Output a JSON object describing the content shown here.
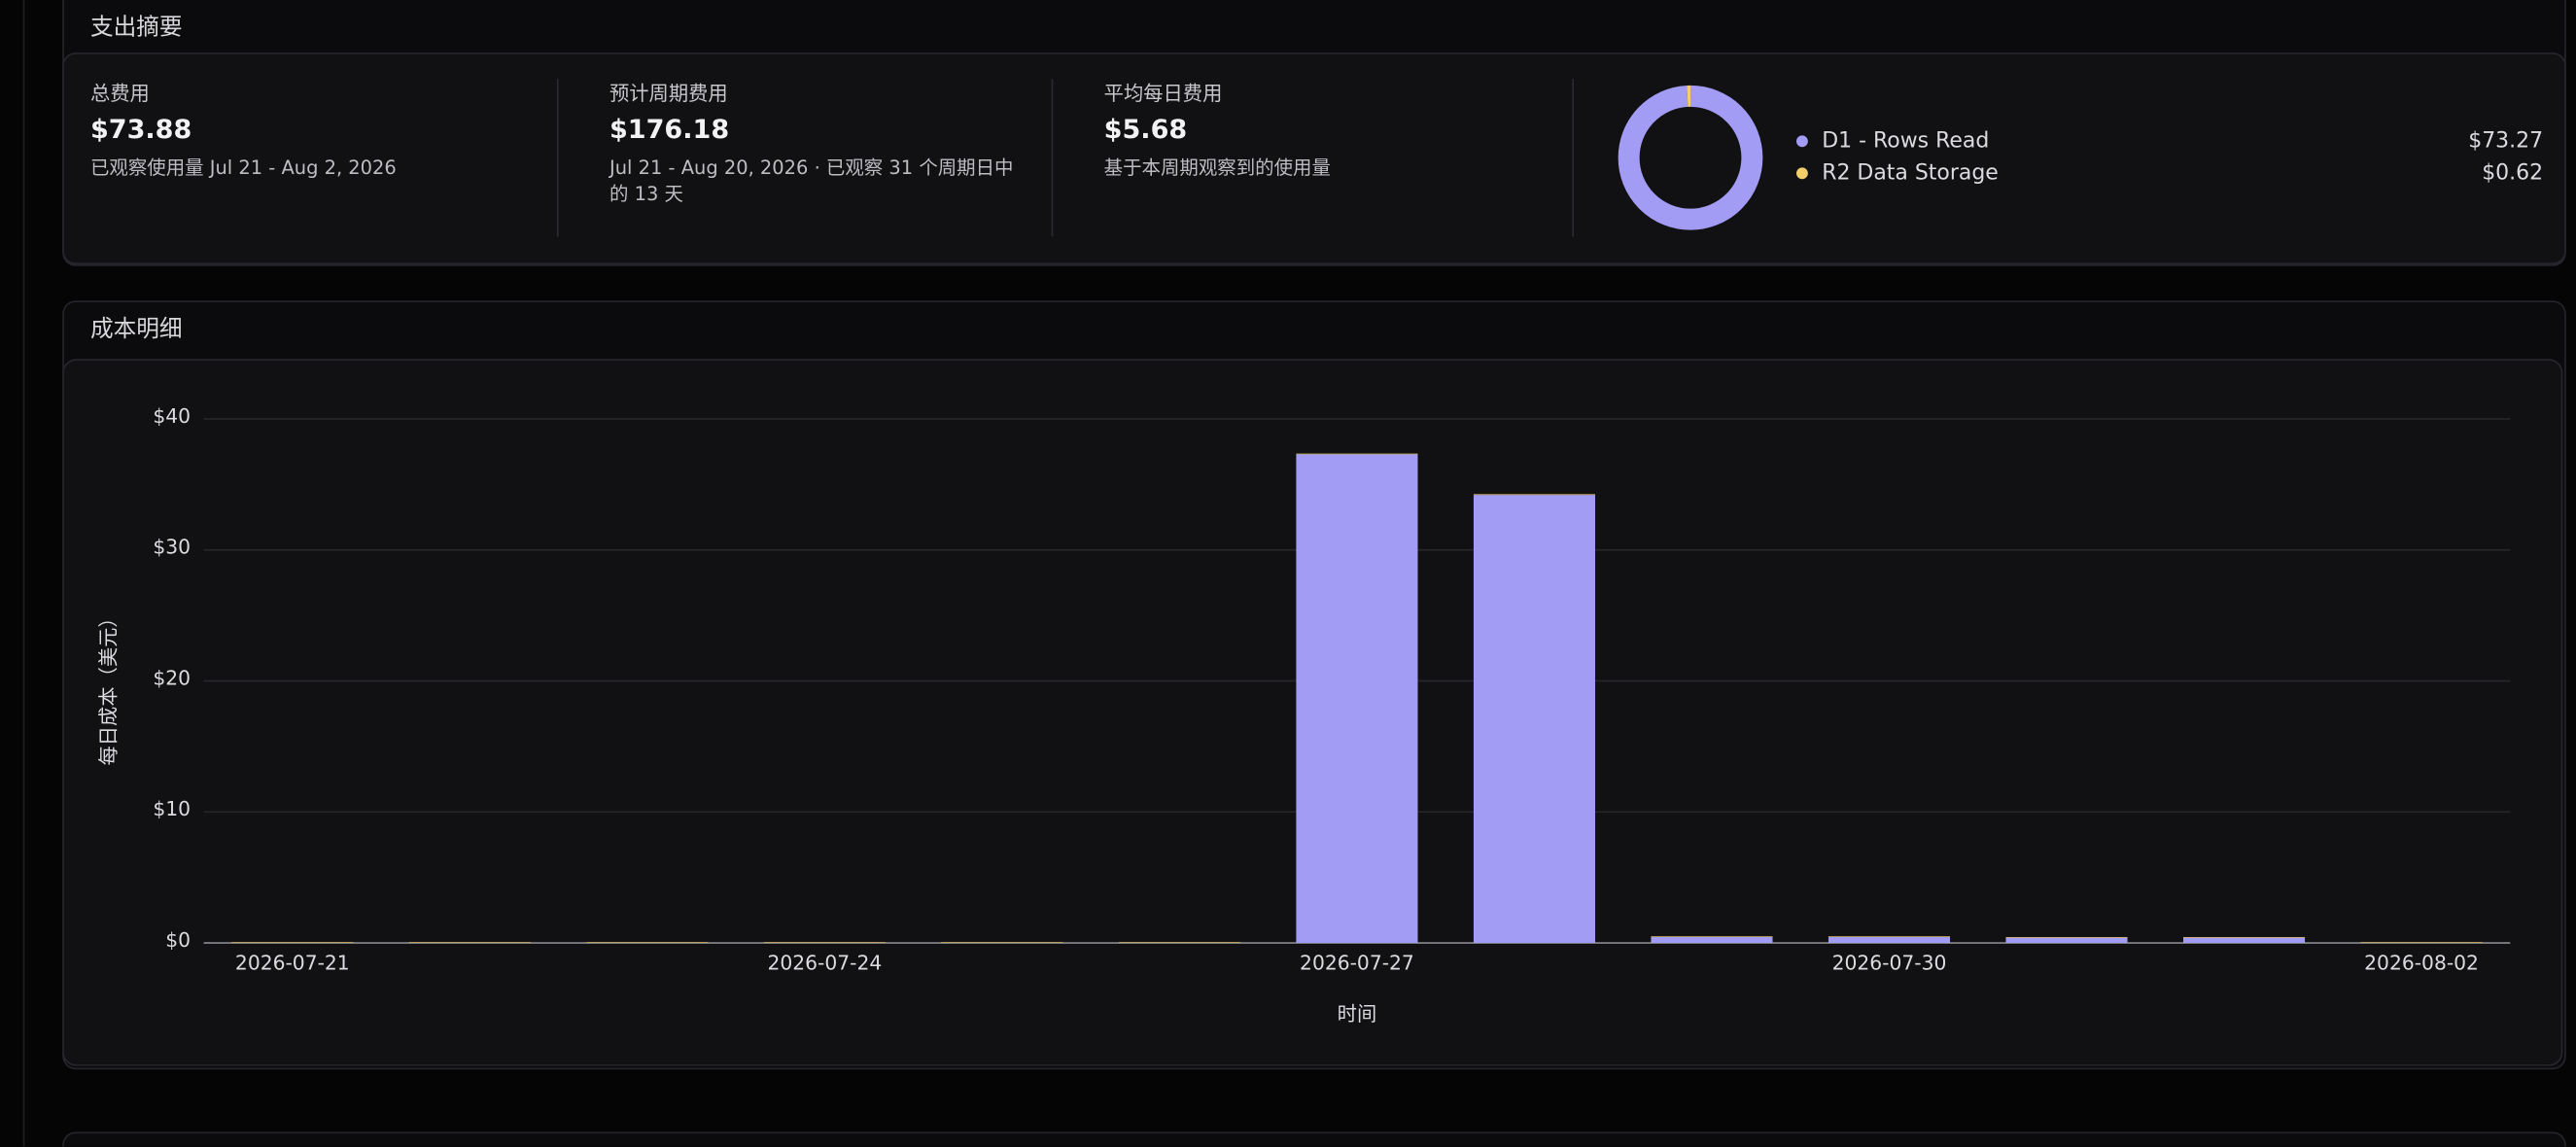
{
  "summary": {
    "title": "支出摘要",
    "stats": [
      {
        "label": "总费用",
        "value": "$73.88",
        "note": "已观察使用量 Jul 21 - Aug 2, 2026"
      },
      {
        "label": "预计周期费用",
        "value": "$176.18",
        "note": "Jul 21 - Aug 20, 2026 · 已观察 31 个周期日中的 13 天"
      },
      {
        "label": "平均每日费用",
        "value": "$5.68",
        "note": "基于本周期观察到的使用量"
      }
    ],
    "breakdown": [
      {
        "name": "D1 - Rows Read",
        "color": "#a39cf4",
        "value": 73.27,
        "value_label": "$73.27"
      },
      {
        "name": "R2 Data Storage",
        "color": "#f5cf6b",
        "value": 0.62,
        "value_label": "$0.62"
      }
    ]
  },
  "chart_data": {
    "type": "bar",
    "stacked": true,
    "title": "成本明细",
    "xlabel": "时间",
    "ylabel": "每日成本（美元）",
    "categories": [
      "2026-07-21",
      null,
      null,
      "2026-07-24",
      null,
      null,
      "2026-07-27",
      null,
      null,
      "2026-07-30",
      null,
      null,
      "2026-08-02"
    ],
    "series": [
      {
        "name": "D1 - Rows Read",
        "color": "#a39cf4",
        "values": [
          0,
          0,
          0,
          0,
          0,
          0,
          37.3,
          34.2,
          0.45,
          0.45,
          0.4,
          0.4,
          0
        ]
      },
      {
        "name": "R2 Data Storage",
        "color": "#f5cf6b",
        "values": [
          0.05,
          0.05,
          0.05,
          0.05,
          0.05,
          0.05,
          0.05,
          0.05,
          0.05,
          0.05,
          0.05,
          0.05,
          0.05
        ]
      }
    ],
    "ylim": [
      0,
      40
    ],
    "yticks": [
      {
        "value": 0,
        "label": "$0"
      },
      {
        "value": 10,
        "label": "$10"
      },
      {
        "value": 20,
        "label": "$20"
      },
      {
        "value": 30,
        "label": "$30"
      },
      {
        "value": 40,
        "label": "$40"
      }
    ],
    "grid": true
  }
}
